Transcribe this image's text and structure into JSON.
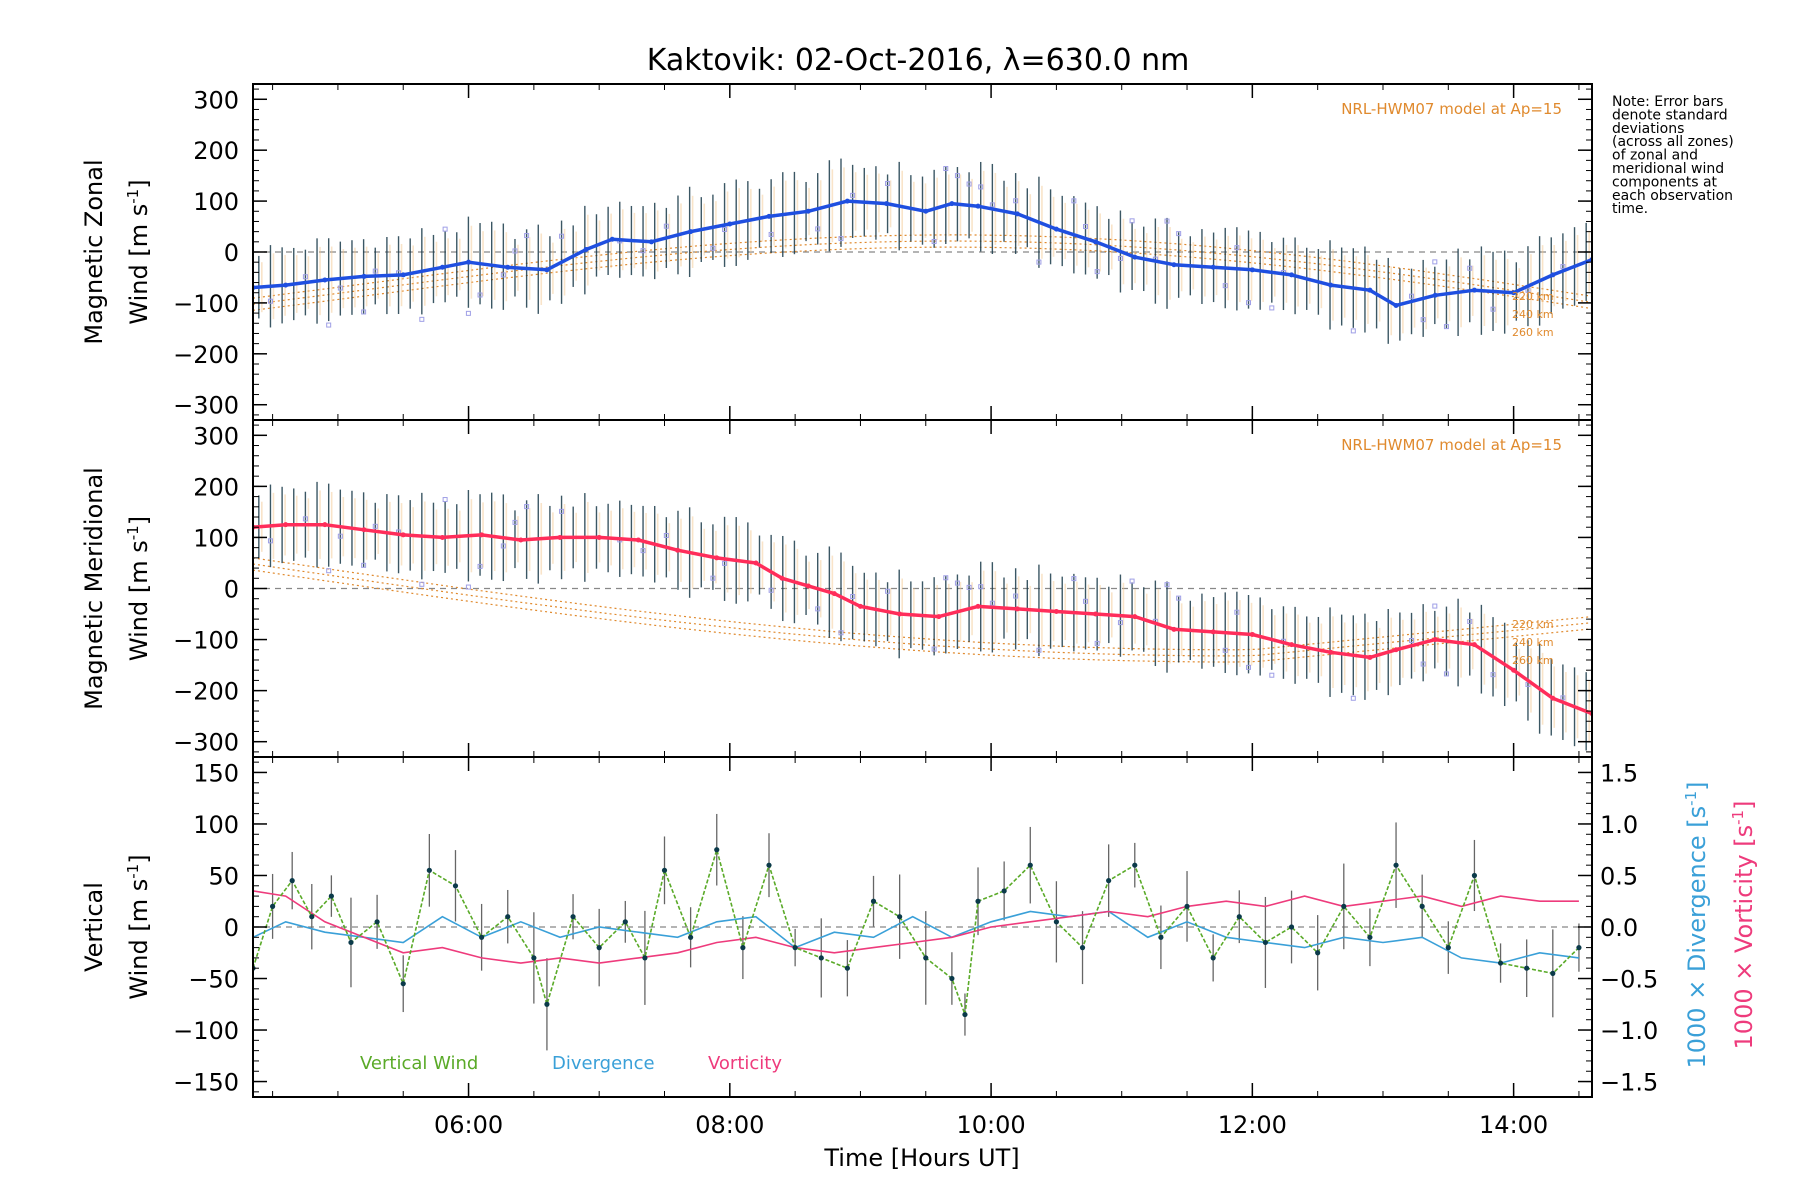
{
  "title": "Kaktovik: 02-Oct-2016, λ=630.0 nm",
  "note_lines": [
    "Note: Error bars",
    "denote standard",
    "deviations",
    "(across all zones)",
    "of zonal and",
    "meridional wind",
    "components at",
    "each observation",
    "time."
  ],
  "colors": {
    "zonal": "#1f4fe0",
    "meridional": "#ff2d5a",
    "vertical": "#5aaa28",
    "divergence": "#3aa0d8",
    "vorticity": "#ee3b7c",
    "model": "#e08a2e",
    "errorbar": "#1a3a4a",
    "zone": "#9f9fe6"
  },
  "chart_data": [
    {
      "type": "line",
      "panel": "zonal",
      "ylabel_line1": "Magnetic Zonal",
      "ylabel_line2": "Wind",
      "ylabel_unit": "[m s",
      "ylabel_exp": "-1",
      "ylabel_close": "]",
      "ylim": [
        -330,
        330
      ],
      "yticks": [
        "300",
        "200",
        "100",
        "0",
        "−100",
        "−200",
        "−300"
      ],
      "ytick_values": [
        300,
        200,
        100,
        0,
        -100,
        -200,
        -300
      ],
      "model_label": "NRL-HWM07 model at Ap=15",
      "model_altitudes": [
        "220 km",
        "240 km",
        "260 km"
      ],
      "series": [
        {
          "x": [
            4.35,
            4.6,
            4.9,
            5.2,
            5.5,
            5.8,
            6.0,
            6.3,
            6.6,
            6.9,
            7.1,
            7.4,
            7.7,
            8.0,
            8.3,
            8.6,
            8.9,
            9.2,
            9.5,
            9.7,
            9.9,
            10.2,
            10.5,
            10.8,
            11.1,
            11.4,
            11.7,
            12.0,
            12.3,
            12.6,
            12.9,
            13.1,
            13.4,
            13.7,
            14.0,
            14.3,
            14.6
          ],
          "y": [
            -70,
            -65,
            -55,
            -48,
            -45,
            -30,
            -20,
            -30,
            -35,
            5,
            25,
            20,
            40,
            55,
            70,
            80,
            100,
            95,
            80,
            95,
            90,
            75,
            45,
            20,
            -10,
            -25,
            -30,
            -35,
            -45,
            -65,
            -75,
            -105,
            -85,
            -75,
            -80,
            -45,
            -15
          ]
        }
      ]
    },
    {
      "type": "line",
      "panel": "meridional",
      "ylabel_line1": "Magnetic Meridional",
      "ylabel_line2": "Wind",
      "ylabel_unit": "[m s",
      "ylabel_exp": "-1",
      "ylabel_close": "]",
      "ylim": [
        -330,
        330
      ],
      "yticks": [
        "300",
        "200",
        "100",
        "0",
        "−100",
        "−200",
        "−300"
      ],
      "ytick_values": [
        300,
        200,
        100,
        0,
        -100,
        -200,
        -300
      ],
      "model_label": "NRL-HWM07 model at Ap=15",
      "model_altitudes": [
        "220 km",
        "240 km",
        "260 km"
      ],
      "series": [
        {
          "x": [
            4.35,
            4.6,
            4.9,
            5.2,
            5.5,
            5.8,
            6.1,
            6.4,
            6.7,
            7.0,
            7.3,
            7.6,
            7.9,
            8.2,
            8.4,
            8.6,
            8.8,
            9.0,
            9.3,
            9.6,
            9.9,
            10.2,
            10.5,
            10.8,
            11.1,
            11.4,
            11.7,
            12.0,
            12.3,
            12.6,
            12.9,
            13.1,
            13.4,
            13.7,
            14.0,
            14.3,
            14.6
          ],
          "y": [
            120,
            125,
            125,
            115,
            105,
            100,
            105,
            95,
            100,
            100,
            95,
            75,
            60,
            50,
            20,
            5,
            -10,
            -35,
            -50,
            -55,
            -35,
            -40,
            -45,
            -50,
            -55,
            -80,
            -85,
            -90,
            -110,
            -125,
            -135,
            -120,
            -100,
            -110,
            -160,
            -215,
            -245
          ]
        }
      ]
    },
    {
      "type": "line",
      "panel": "vertical",
      "ylabel_line1": "Vertical",
      "ylabel_line2": "Wind",
      "ylabel_unit": "[m s",
      "ylabel_exp": "-1",
      "ylabel_close": "]",
      "ylim": [
        -165,
        165
      ],
      "yticks": [
        "150",
        "100",
        "50",
        "0",
        "−50",
        "−100",
        "−150"
      ],
      "ytick_values": [
        150,
        100,
        50,
        0,
        -50,
        -100,
        -150
      ],
      "y2label_div": "1000 × Divergence [s",
      "y2label_vort": "1000 × Vorticity [s",
      "y2label_exp": "-1",
      "y2label_close": "]",
      "y2lim": [
        -1.65,
        1.65
      ],
      "y2ticks": [
        "1.5",
        "1.0",
        "0.5",
        "0.0",
        "−0.5",
        "−1.0",
        "−1.5"
      ],
      "y2tick_values": [
        1.5,
        1.0,
        0.5,
        0.0,
        -0.5,
        -1.0,
        -1.5
      ],
      "legend": [
        "Vertical Wind",
        "Divergence",
        "Vorticity"
      ],
      "series": [
        {
          "name": "Vertical Wind",
          "x": [
            4.35,
            4.5,
            4.65,
            4.8,
            4.95,
            5.1,
            5.3,
            5.5,
            5.7,
            5.9,
            6.1,
            6.3,
            6.5,
            6.6,
            6.8,
            7.0,
            7.2,
            7.35,
            7.5,
            7.7,
            7.9,
            8.1,
            8.3,
            8.5,
            8.7,
            8.9,
            9.1,
            9.3,
            9.5,
            9.7,
            9.8,
            9.9,
            10.1,
            10.3,
            10.5,
            10.7,
            10.9,
            11.1,
            11.3,
            11.5,
            11.7,
            11.9,
            12.1,
            12.3,
            12.5,
            12.7,
            12.9,
            13.1,
            13.3,
            13.5,
            13.7,
            13.9,
            14.1,
            14.3,
            14.5
          ],
          "y": [
            -40,
            20,
            45,
            10,
            30,
            -15,
            5,
            -55,
            55,
            40,
            -10,
            10,
            -30,
            -75,
            10,
            -20,
            5,
            -30,
            55,
            -10,
            75,
            -20,
            60,
            -20,
            -30,
            -40,
            25,
            10,
            -30,
            -50,
            -85,
            25,
            35,
            60,
            5,
            -20,
            45,
            60,
            -10,
            20,
            -30,
            10,
            -15,
            0,
            -25,
            20,
            -10,
            60,
            20,
            -20,
            50,
            -35,
            -40,
            -45,
            -20
          ]
        },
        {
          "name": "Divergence",
          "x": [
            4.35,
            4.6,
            4.9,
            5.2,
            5.5,
            5.8,
            6.1,
            6.4,
            6.7,
            7.0,
            7.3,
            7.6,
            7.9,
            8.2,
            8.5,
            8.8,
            9.1,
            9.4,
            9.7,
            10.0,
            10.3,
            10.6,
            10.9,
            11.2,
            11.5,
            11.8,
            12.1,
            12.4,
            12.7,
            13.0,
            13.3,
            13.6,
            13.9,
            14.2,
            14.5
          ],
          "y": [
            -0.1,
            0.05,
            -0.05,
            -0.1,
            -0.15,
            0.1,
            -0.1,
            0.05,
            -0.1,
            0.0,
            -0.05,
            -0.1,
            0.05,
            0.1,
            -0.2,
            -0.05,
            -0.1,
            0.1,
            -0.1,
            0.05,
            0.15,
            0.1,
            0.15,
            -0.1,
            0.05,
            -0.1,
            -0.15,
            -0.2,
            -0.1,
            -0.15,
            -0.1,
            -0.3,
            -0.35,
            -0.25,
            -0.3
          ]
        },
        {
          "name": "Vorticity",
          "x": [
            4.35,
            4.6,
            4.9,
            5.2,
            5.5,
            5.8,
            6.1,
            6.4,
            6.7,
            7.0,
            7.3,
            7.6,
            7.9,
            8.2,
            8.5,
            8.8,
            9.1,
            9.4,
            9.7,
            10.0,
            10.3,
            10.6,
            10.9,
            11.2,
            11.5,
            11.8,
            12.1,
            12.4,
            12.7,
            13.0,
            13.3,
            13.6,
            13.9,
            14.2,
            14.5
          ],
          "y": [
            0.35,
            0.3,
            0.05,
            -0.1,
            -0.25,
            -0.2,
            -0.3,
            -0.35,
            -0.3,
            -0.35,
            -0.3,
            -0.25,
            -0.15,
            -0.1,
            -0.2,
            -0.25,
            -0.2,
            -0.15,
            -0.1,
            0.0,
            0.05,
            0.1,
            0.15,
            0.1,
            0.2,
            0.25,
            0.2,
            0.3,
            0.2,
            0.25,
            0.3,
            0.2,
            0.3,
            0.25,
            0.25
          ]
        }
      ]
    }
  ],
  "xaxis": {
    "xlim": [
      4.35,
      14.6
    ],
    "tick_values": [
      6,
      8,
      10,
      12,
      14
    ],
    "tick_labels": [
      "06:00",
      "08:00",
      "10:00",
      "12:00",
      "14:00"
    ],
    "label": "Time [Hours UT]"
  }
}
